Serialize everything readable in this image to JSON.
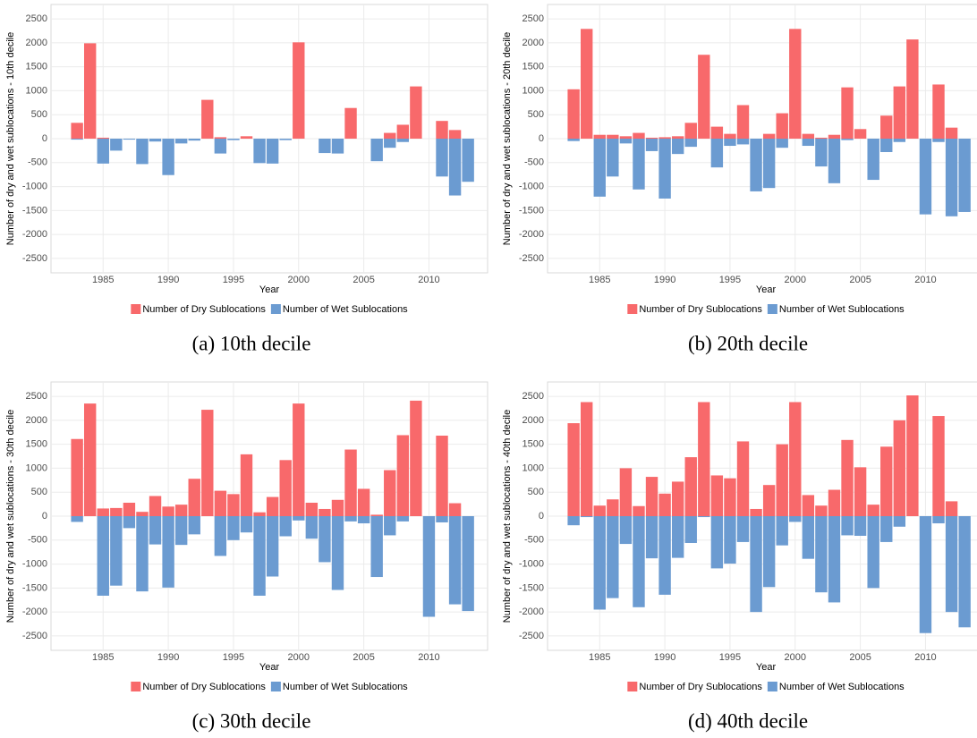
{
  "chart_data": [
    {
      "type": "bar",
      "caption": "(a) 10th decile",
      "xlabel": "Year",
      "ylabel": "Number of dry and wet sublocations - 10th decile",
      "x": [
        1983,
        1984,
        1985,
        1986,
        1987,
        1988,
        1989,
        1990,
        1991,
        1992,
        1993,
        1994,
        1995,
        1996,
        1997,
        1998,
        1999,
        2000,
        2001,
        2002,
        2003,
        2004,
        2005,
        2006,
        2007,
        2008,
        2009,
        2010,
        2011,
        2012,
        2013
      ],
      "series": [
        {
          "name": "Number of Dry Sublocations",
          "color": "#f8696b",
          "values": [
            330,
            1990,
            20,
            0,
            0,
            0,
            0,
            0,
            0,
            0,
            810,
            30,
            0,
            50,
            0,
            0,
            0,
            2010,
            0,
            0,
            0,
            640,
            0,
            0,
            120,
            290,
            1090,
            0,
            370,
            180,
            0
          ]
        },
        {
          "name": "Number of Wet Sublocations",
          "color": "#6b9bd1",
          "values": [
            -20,
            0,
            -520,
            -250,
            -20,
            -530,
            -60,
            -760,
            -100,
            -40,
            0,
            -310,
            -30,
            0,
            -510,
            -520,
            -30,
            0,
            0,
            -300,
            -310,
            0,
            0,
            -470,
            -190,
            -70,
            0,
            0,
            -790,
            -1186,
            -900
          ]
        }
      ],
      "xlim": [
        1981,
        2014.5
      ],
      "xticks": [
        1985,
        1990,
        1995,
        2000,
        2005,
        2010
      ],
      "ylim": [
        -2800,
        2800
      ],
      "yticks": [
        -2500,
        -2000,
        -1500,
        -1000,
        -500,
        0,
        500,
        1000,
        1500,
        2000,
        2500
      ],
      "grid": true,
      "legend": "bottom"
    },
    {
      "type": "bar",
      "caption": "(b) 20th decile",
      "xlabel": "Year",
      "ylabel": "Number of dry and wet sublocations - 20th decile",
      "x": [
        1983,
        1984,
        1985,
        1986,
        1987,
        1988,
        1989,
        1990,
        1991,
        1992,
        1993,
        1994,
        1995,
        1996,
        1997,
        1998,
        1999,
        2000,
        2001,
        2002,
        2003,
        2004,
        2005,
        2006,
        2007,
        2008,
        2009,
        2010,
        2011,
        2012,
        2013
      ],
      "series": [
        {
          "name": "Number of Dry Sublocations",
          "color": "#f8696b",
          "values": [
            1030,
            2290,
            80,
            80,
            50,
            120,
            20,
            30,
            50,
            330,
            1750,
            250,
            100,
            700,
            0,
            100,
            530,
            2290,
            100,
            20,
            80,
            1070,
            200,
            0,
            480,
            1090,
            2070,
            0,
            1130,
            230,
            0
          ]
        },
        {
          "name": "Number of Wet Sublocations",
          "color": "#6b9bd1",
          "values": [
            -50,
            0,
            -1210,
            -790,
            -100,
            -1060,
            -260,
            -1250,
            -320,
            -170,
            0,
            -600,
            -150,
            -120,
            -1100,
            -1030,
            -190,
            0,
            -150,
            -580,
            -930,
            -30,
            0,
            -860,
            -280,
            -70,
            0,
            -1580,
            -70,
            -1620,
            -1530
          ]
        }
      ],
      "xlim": [
        1981,
        2014.5
      ],
      "xticks": [
        1985,
        1990,
        1995,
        2000,
        2005,
        2010
      ],
      "ylim": [
        -2800,
        2800
      ],
      "yticks": [
        -2500,
        -2000,
        -1500,
        -1000,
        -500,
        0,
        500,
        1000,
        1500,
        2000,
        2500
      ],
      "grid": true,
      "legend": "bottom"
    },
    {
      "type": "bar",
      "caption": "(c) 30th decile",
      "xlabel": "Year",
      "ylabel": "Number of dry and wet sublocations - 30th decile",
      "x": [
        1983,
        1984,
        1985,
        1986,
        1987,
        1988,
        1989,
        1990,
        1991,
        1992,
        1993,
        1994,
        1995,
        1996,
        1997,
        1998,
        1999,
        2000,
        2001,
        2002,
        2003,
        2004,
        2005,
        2006,
        2007,
        2008,
        2009,
        2010,
        2011,
        2012,
        2013
      ],
      "series": [
        {
          "name": "Number of Dry Sublocations",
          "color": "#f8696b",
          "values": [
            1610,
            2350,
            160,
            170,
            280,
            90,
            420,
            200,
            240,
            780,
            2220,
            530,
            460,
            1290,
            80,
            400,
            1170,
            2350,
            280,
            150,
            340,
            1390,
            570,
            30,
            960,
            1690,
            2410,
            0,
            1680,
            270,
            0
          ]
        },
        {
          "name": "Number of Wet Sublocations",
          "color": "#6b9bd1",
          "values": [
            -120,
            0,
            -1660,
            -1450,
            -250,
            -1570,
            -590,
            -1490,
            -600,
            -380,
            0,
            -830,
            -500,
            -340,
            -1660,
            -1260,
            -420,
            -90,
            -470,
            -960,
            -1540,
            -110,
            -150,
            -1270,
            -400,
            -110,
            0,
            -2100,
            -130,
            -1840,
            -1980
          ]
        }
      ],
      "xlim": [
        1981,
        2014.5
      ],
      "xticks": [
        1985,
        1990,
        1995,
        2000,
        2005,
        2010
      ],
      "ylim": [
        -2800,
        2800
      ],
      "yticks": [
        -2500,
        -2000,
        -1500,
        -1000,
        -500,
        0,
        500,
        1000,
        1500,
        2000,
        2500
      ],
      "grid": true,
      "legend": "bottom"
    },
    {
      "type": "bar",
      "caption": "(d) 40th decile",
      "xlabel": "Year",
      "ylabel": "Number of dry and wet sublocations - 40th decile",
      "x": [
        1983,
        1984,
        1985,
        1986,
        1987,
        1988,
        1989,
        1990,
        1991,
        1992,
        1993,
        1994,
        1995,
        1996,
        1997,
        1998,
        1999,
        2000,
        2001,
        2002,
        2003,
        2004,
        2005,
        2006,
        2007,
        2008,
        2009,
        2010,
        2011,
        2012,
        2013
      ],
      "series": [
        {
          "name": "Number of Dry Sublocations",
          "color": "#f8696b",
          "values": [
            1940,
            2380,
            220,
            350,
            1000,
            210,
            820,
            470,
            720,
            1230,
            2380,
            850,
            790,
            1560,
            150,
            650,
            1500,
            2380,
            440,
            220,
            550,
            1590,
            1020,
            240,
            1450,
            2000,
            2520,
            0,
            2090,
            310,
            0
          ]
        },
        {
          "name": "Number of Wet Sublocations",
          "color": "#6b9bd1",
          "values": [
            -190,
            -20,
            -1950,
            -1710,
            -580,
            -1900,
            -880,
            -1640,
            -870,
            -560,
            -20,
            -1090,
            -990,
            -540,
            -2000,
            -1480,
            -610,
            -120,
            -890,
            -1590,
            -1800,
            -400,
            -410,
            -1500,
            -540,
            -220,
            0,
            -2440,
            -150,
            -2000,
            -2320
          ]
        }
      ],
      "xlim": [
        1981,
        2014.5
      ],
      "xticks": [
        1985,
        1990,
        1995,
        2000,
        2005,
        2010
      ],
      "ylim": [
        -2800,
        2800
      ],
      "yticks": [
        -2500,
        -2000,
        -1500,
        -1000,
        -500,
        0,
        500,
        1000,
        1500,
        2000,
        2500
      ],
      "grid": true,
      "legend": "bottom"
    }
  ]
}
